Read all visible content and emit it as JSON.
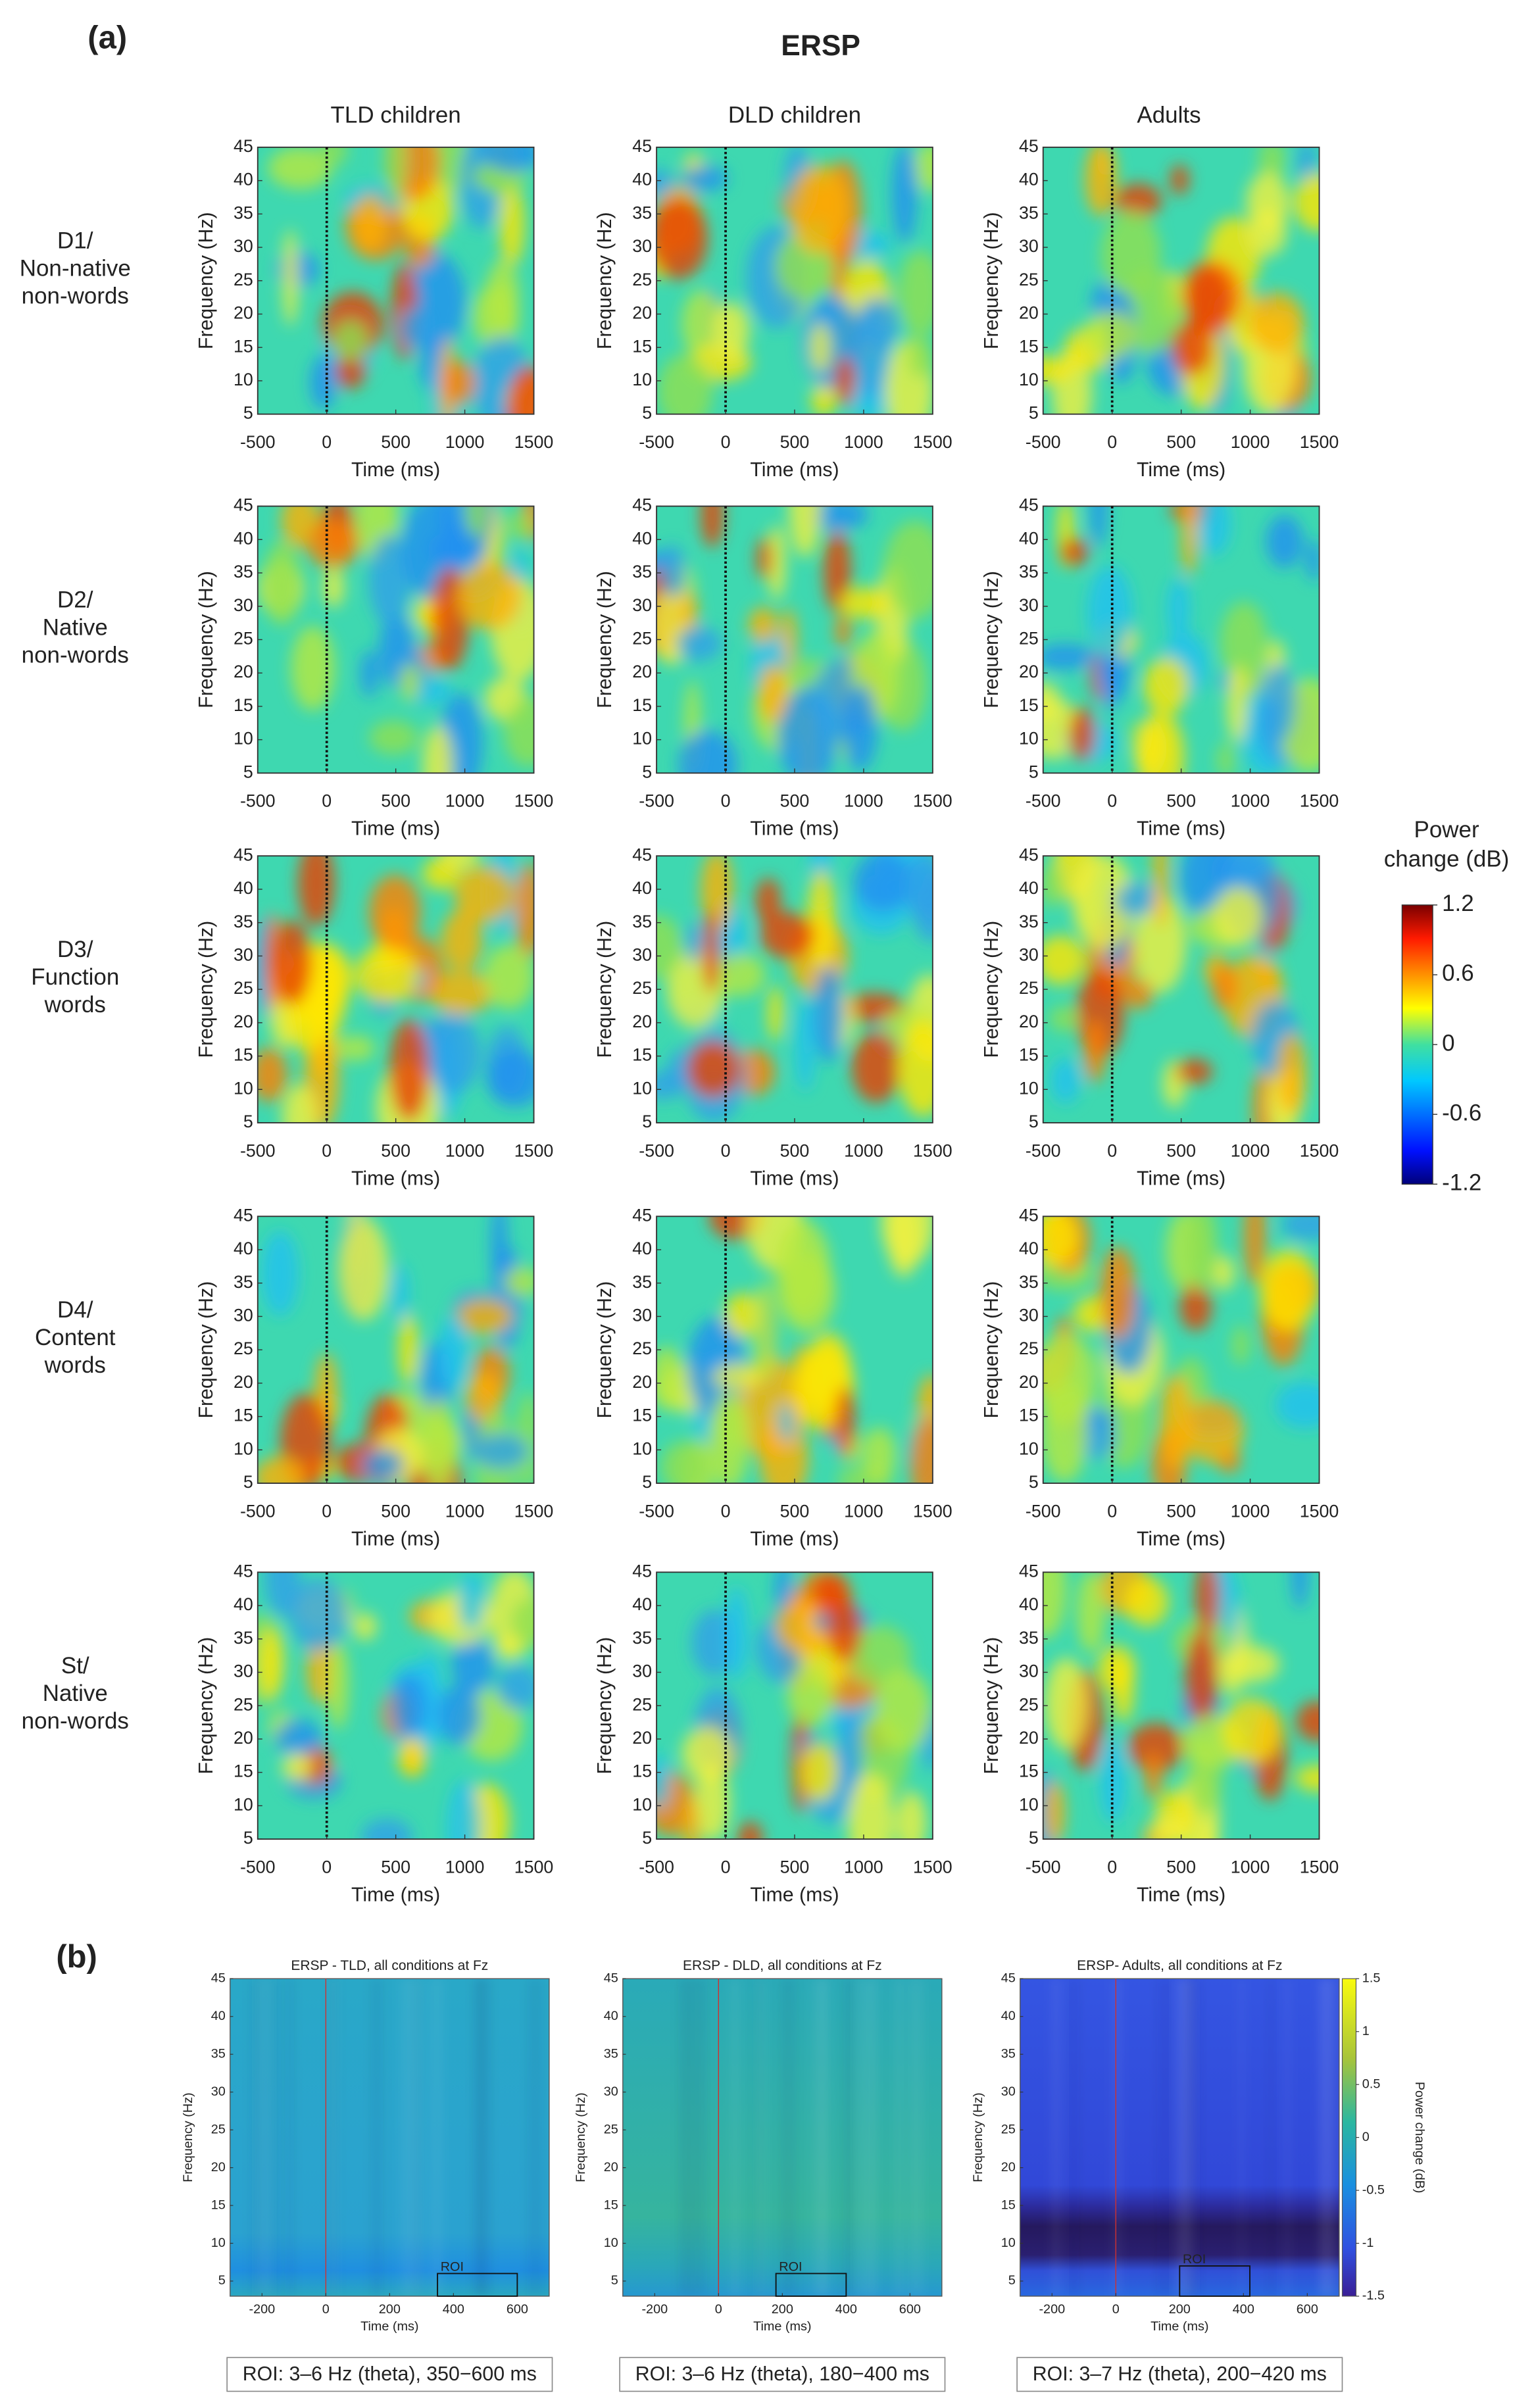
{
  "panel_a": {
    "label": "(a)",
    "title": "ERSP",
    "columns": [
      "TLD children",
      "DLD children",
      "Adults"
    ],
    "rows": [
      [
        "D1/",
        "Non-native",
        "non-words"
      ],
      [
        "D2/",
        "Native",
        "non-words"
      ],
      [
        "D3/",
        "Function",
        "words"
      ],
      [
        "D4/",
        "Content",
        "words"
      ],
      [
        "St/",
        "Native",
        "non-words"
      ]
    ],
    "xlabel": "Time (ms)",
    "ylabel": "Frequency (Hz)",
    "xlim": [
      -500,
      1500
    ],
    "xticks": [
      -500,
      0,
      500,
      1000,
      1500
    ],
    "ylim": [
      5,
      45
    ],
    "yticks": [
      5,
      10,
      15,
      20,
      25,
      30,
      35,
      40,
      45
    ],
    "colorbar_title": [
      "Power",
      "change (dB)"
    ],
    "colorbar_lim": [
      -1.2,
      1.2
    ],
    "colorbar_ticks": [
      1.2,
      0.6,
      0,
      -0.6,
      -1.2
    ]
  },
  "panel_b": {
    "label": "(b)",
    "xlabel": "Time (ms)",
    "ylabel": "Frequency (Hz)",
    "xlim": [
      -300,
      700
    ],
    "xticks": [
      -200,
      0,
      200,
      400,
      600
    ],
    "ylim": [
      3,
      45
    ],
    "yticks": [
      5,
      10,
      15,
      20,
      25,
      30,
      35,
      40,
      45
    ],
    "roi_label": "ROI",
    "colorbar_label": "Power change (dB)",
    "colorbar_lim": [
      -1.5,
      1.5
    ],
    "colorbar_ticks": [
      1.5,
      1,
      0.5,
      0,
      -0.5,
      -1,
      -1.5
    ],
    "panels": [
      {
        "title": "ERSP - TLD, all conditions at Fz",
        "roi": {
          "freq": [
            3,
            6
          ],
          "time": [
            350,
            600
          ]
        },
        "caption": "ROI: 3–6 Hz (theta), 350−600 ms"
      },
      {
        "title": "ERSP - DLD, all conditions at Fz",
        "roi": {
          "freq": [
            3,
            6
          ],
          "time": [
            180,
            400
          ]
        },
        "caption": "ROI: 3–6 Hz (theta), 180−400 ms"
      },
      {
        "title": "ERSP- Adults, all conditions at Fz",
        "roi": {
          "freq": [
            3,
            7
          ],
          "time": [
            200,
            420
          ]
        },
        "caption": "ROI: 3–7 Hz (theta), 200−420 ms"
      }
    ]
  }
}
